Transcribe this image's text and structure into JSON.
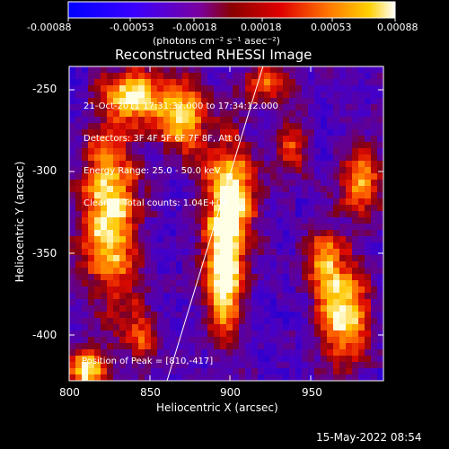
{
  "colorbar": {
    "ticks": [
      "-0.00088",
      "-0.00053",
      "-0.00018",
      "0.00018",
      "0.00053",
      "0.00088"
    ],
    "units": "(photons cm⁻² s⁻¹ asec⁻²)",
    "colors": [
      "#0000ff",
      "#5a00c8",
      "#8c0000",
      "#ff4000",
      "#ffb000",
      "#ffffff"
    ]
  },
  "title": "Reconstructed RHESSI Image",
  "annotations": [
    "21-Oct-2011 17:31:32.000 to 17:34:12.000",
    "Detectors: 3F 4F 5F 6F 7F 8F, Att 0",
    "Energy Range: 25.0 - 50.0 keV",
    "Clean     Total counts: 1.04E+04"
  ],
  "peak_label": "Position of Peak = [810,-417]",
  "x_axis": {
    "label": "Heliocentric X (arcsec)",
    "ticks": [
      "800",
      "850",
      "900",
      "950"
    ]
  },
  "y_axis": {
    "label": "Heliocentric Y (arcsec)",
    "ticks": [
      "-250",
      "-300",
      "-350",
      "-400"
    ]
  },
  "footer_timestamp": "15-May-2022 08:54"
}
